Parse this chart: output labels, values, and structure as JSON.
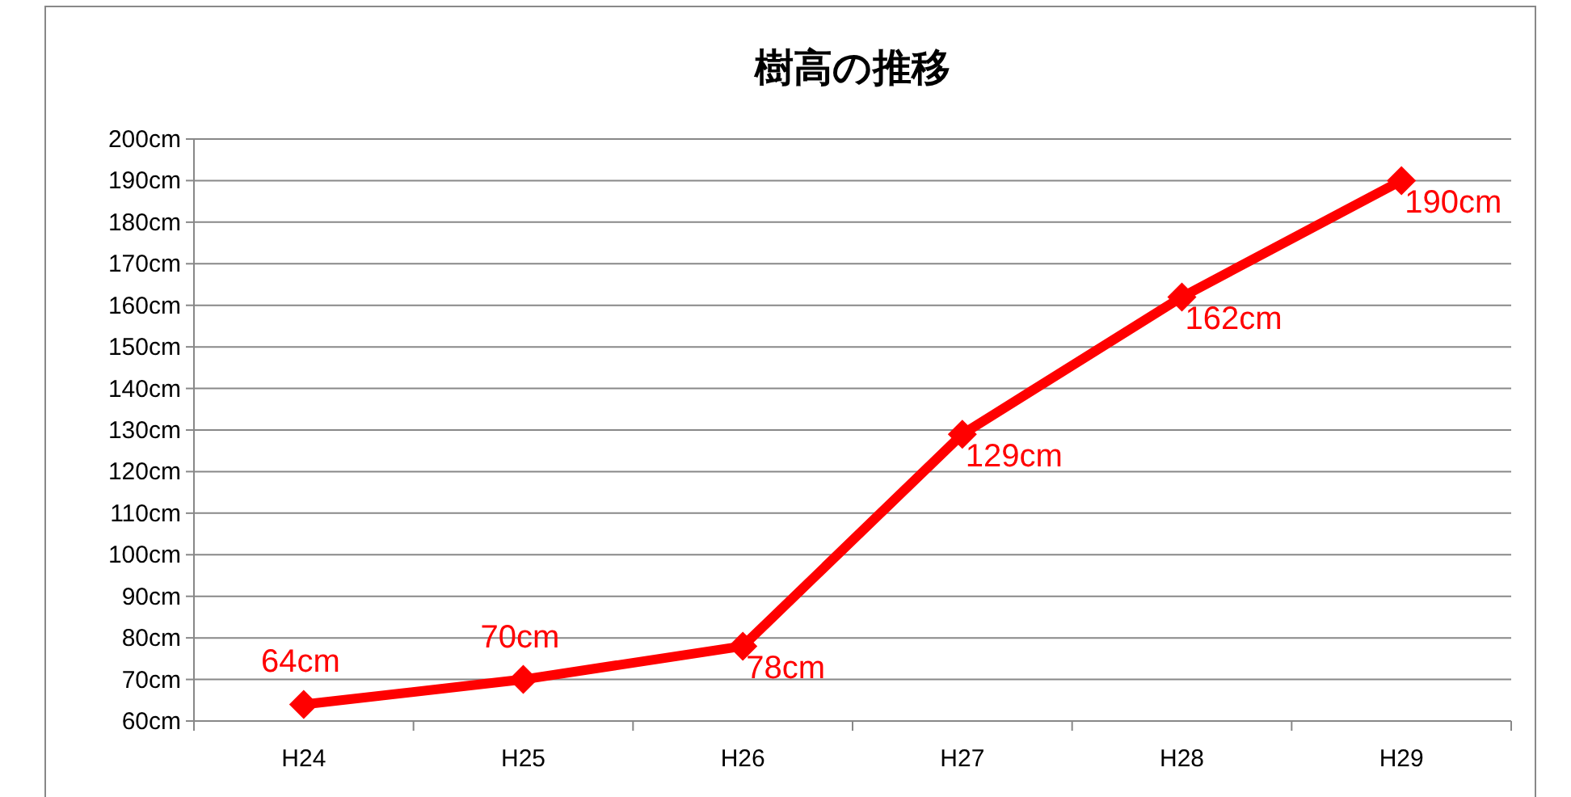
{
  "chart_data": {
    "type": "line",
    "title": "樹高の推移",
    "categories": [
      "H24",
      "H25",
      "H26",
      "H27",
      "H28",
      "H29"
    ],
    "series": [
      {
        "color": "#ff0000",
        "values": [
          64,
          70,
          78,
          129,
          162,
          190
        ],
        "value_labels": [
          "64cm",
          "70cm",
          "78cm",
          "129cm",
          "162cm",
          "190cm"
        ]
      }
    ],
    "ylim": [
      60,
      200
    ],
    "yticks": [
      {
        "value": 60,
        "label": "60cm"
      },
      {
        "value": 70,
        "label": "70cm"
      },
      {
        "value": 80,
        "label": "80cm"
      },
      {
        "value": 90,
        "label": "90cm"
      },
      {
        "value": 100,
        "label": "100cm"
      },
      {
        "value": 110,
        "label": "110cm"
      },
      {
        "value": 120,
        "label": "120cm"
      },
      {
        "value": 130,
        "label": "130cm"
      },
      {
        "value": 140,
        "label": "140cm"
      },
      {
        "value": 150,
        "label": "150cm"
      },
      {
        "value": 160,
        "label": "160cm"
      },
      {
        "value": 170,
        "label": "170cm"
      },
      {
        "value": 180,
        "label": "180cm"
      },
      {
        "value": 190,
        "label": "190cm"
      },
      {
        "value": 200,
        "label": "200cm"
      }
    ],
    "grid": "y",
    "marker": "diamond",
    "line_style": "solid"
  }
}
